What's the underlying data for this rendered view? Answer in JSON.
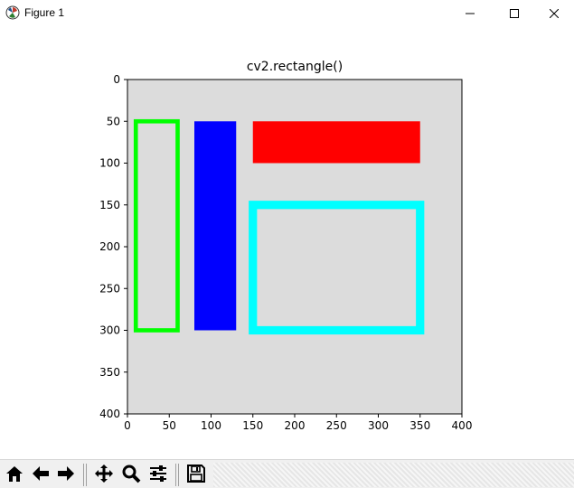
{
  "window": {
    "title": "Figure 1"
  },
  "window_icons": {
    "app": "matplotlib-icon",
    "minimize": "minimize-icon",
    "maximize": "maximize-icon",
    "close": "close-icon"
  },
  "toolbar": {
    "buttons": [
      {
        "name": "home-icon"
      },
      {
        "name": "back-arrow-icon"
      },
      {
        "name": "forward-arrow-icon"
      },
      {
        "name": "pan-icon"
      },
      {
        "name": "zoom-icon"
      },
      {
        "name": "configure-subplots-icon"
      },
      {
        "name": "save-icon"
      }
    ]
  },
  "chart_data": {
    "type": "image",
    "title": "cv2.rectangle()",
    "xlim": [
      0,
      400
    ],
    "ylim": [
      400,
      0
    ],
    "x_ticks": [
      0,
      50,
      100,
      150,
      200,
      250,
      300,
      350,
      400
    ],
    "y_ticks": [
      0,
      50,
      100,
      150,
      200,
      250,
      300,
      350,
      400
    ],
    "x_tick_labels": [
      "0",
      "50",
      "100",
      "150",
      "200",
      "250",
      "300",
      "350",
      "400"
    ],
    "y_tick_labels": [
      "0",
      "50",
      "100",
      "150",
      "200",
      "250",
      "300",
      "350",
      "400"
    ],
    "background_color": "#dcdcdc",
    "rectangles": [
      {
        "name": "green-outline-rectangle",
        "x1": 10,
        "y1": 50,
        "x2": 60,
        "y2": 300,
        "color": "#00ff00",
        "thickness": 5,
        "filled": false
      },
      {
        "name": "blue-filled-rectangle",
        "x1": 80,
        "y1": 50,
        "x2": 130,
        "y2": 300,
        "color": "#0000ff",
        "filled": true
      },
      {
        "name": "red-filled-rectangle",
        "x1": 150,
        "y1": 50,
        "x2": 350,
        "y2": 100,
        "color": "#ff0000",
        "filled": true
      },
      {
        "name": "cyan-outline-rectangle",
        "x1": 150,
        "y1": 150,
        "x2": 350,
        "y2": 300,
        "color": "#00ffff",
        "thickness": 10,
        "filled": false
      }
    ]
  }
}
